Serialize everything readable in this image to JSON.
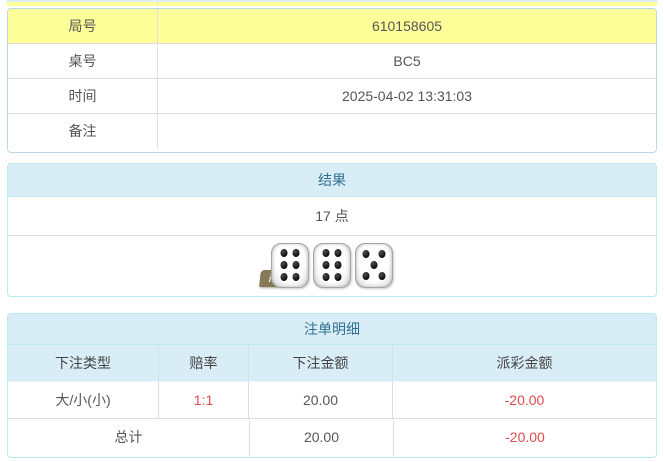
{
  "colors": {
    "highlight_yellow": "#ffff99",
    "panel_header_bg": "#d9edf7",
    "panel_border": "#bce8f1",
    "panel_header_text": "#31708f",
    "negative_red": "#dd4b4b",
    "body_text": "#555555"
  },
  "info_table": {
    "rows": [
      {
        "label": "局号",
        "value": "610158605"
      },
      {
        "label": "桌号",
        "value": "BC5"
      },
      {
        "label": "时间",
        "value": "2025-04-02 13:31:03"
      },
      {
        "label": "备注",
        "value": ""
      }
    ]
  },
  "result_panel": {
    "title": "结果",
    "points": "17 点",
    "dice": [
      6,
      6,
      5
    ],
    "info_icon": "i"
  },
  "bets_panel": {
    "title": "注单明细",
    "columns": [
      "下注类型",
      "赔率",
      "下注金额",
      "派彩金额"
    ],
    "rows": [
      {
        "type": "大/小(小)",
        "odds": "1:1",
        "amount": "20.00",
        "payout": "-20.00"
      }
    ],
    "total": {
      "label": "总计",
      "amount": "20.00",
      "payout": "-20.00"
    }
  }
}
